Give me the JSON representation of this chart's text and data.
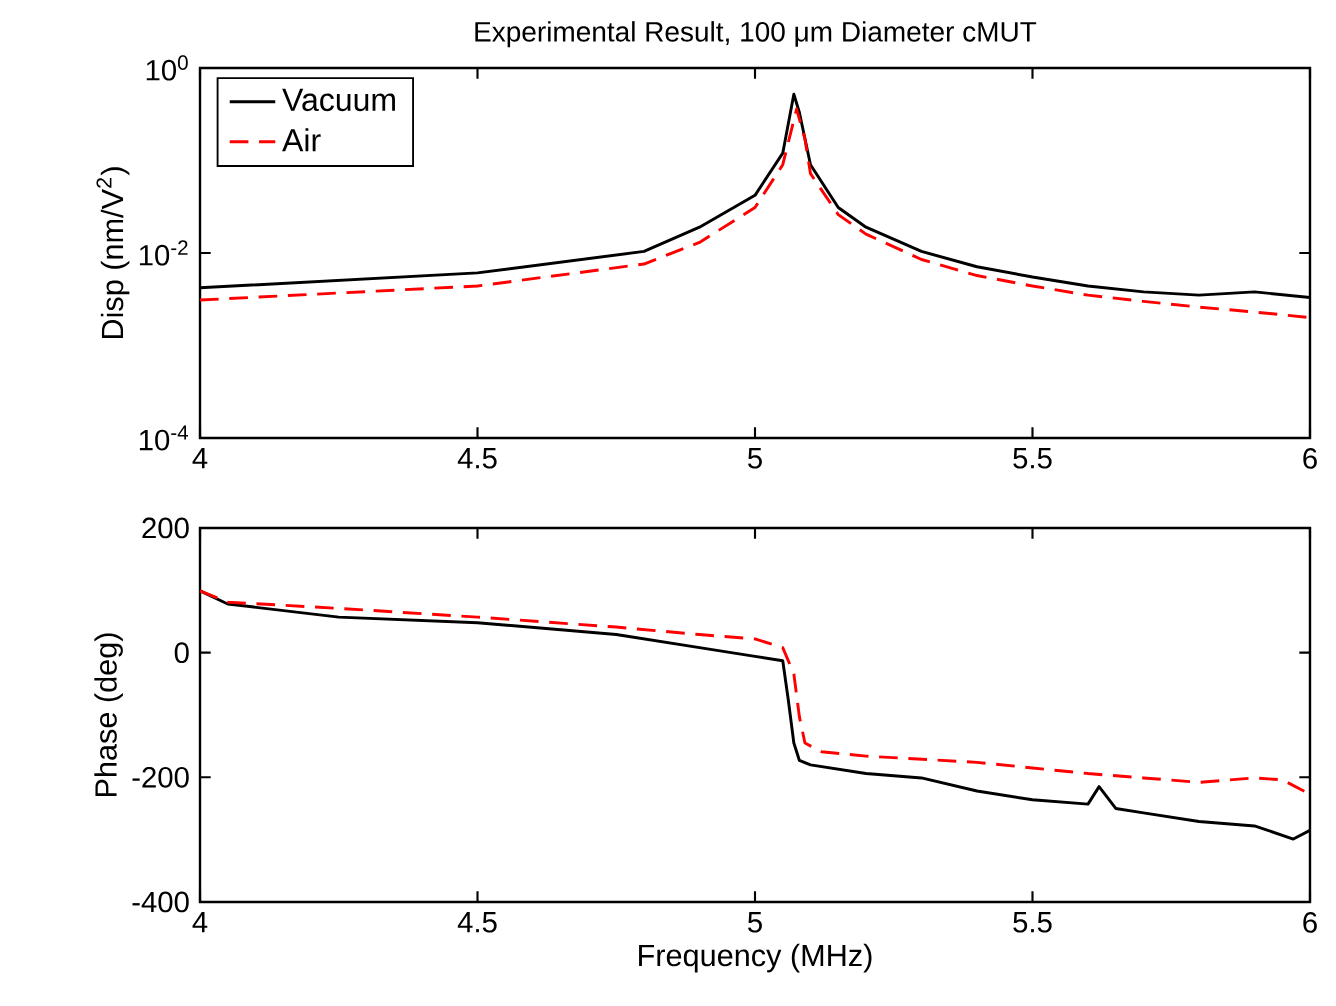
{
  "chart_data": [
    {
      "type": "line",
      "title": "Experimental Result, 100 μm Diameter cMUT",
      "ylabel": "Disp (nm/V$^{2}$)",
      "log": "y",
      "xlim": [
        4,
        6
      ],
      "xticks": [
        4,
        4.5,
        5,
        5.5,
        6
      ],
      "ylim": [
        0.0001,
        1
      ],
      "yticks": [
        {
          "value": 0.0001,
          "label": "10$^{-4}$"
        },
        {
          "value": 0.01,
          "label": "10$^{-2}$"
        },
        {
          "value": 1,
          "label": "10$^{0}$"
        }
      ],
      "legend": "top left",
      "series": [
        {
          "name": "Vacuum",
          "color": "#000000",
          "line_style": "solid",
          "x": [
            4.0,
            4.5,
            4.8,
            4.9,
            5.0,
            5.05,
            5.07,
            5.08,
            5.1,
            5.15,
            5.2,
            5.3,
            5.4,
            5.5,
            5.6,
            5.7,
            5.8,
            5.9,
            6.0
          ],
          "values": [
            0.0042,
            0.0061,
            0.0104,
            0.019,
            0.042,
            0.12,
            0.52,
            0.33,
            0.09,
            0.031,
            0.019,
            0.0104,
            0.0071,
            0.0055,
            0.0044,
            0.0038,
            0.0035,
            0.0038,
            0.0033
          ]
        },
        {
          "name": "Air",
          "color": "#ff0000",
          "line_style": "dashed",
          "x": [
            4.0,
            4.5,
            4.8,
            4.9,
            5.0,
            5.05,
            5.075,
            5.09,
            5.1,
            5.15,
            5.2,
            5.3,
            5.4,
            5.5,
            5.6,
            5.7,
            5.8,
            5.9,
            6.0
          ],
          "values": [
            0.0031,
            0.0044,
            0.0076,
            0.013,
            0.031,
            0.09,
            0.36,
            0.17,
            0.072,
            0.026,
            0.016,
            0.0085,
            0.0057,
            0.0044,
            0.0035,
            0.003,
            0.0026,
            0.0023,
            0.002
          ]
        }
      ]
    },
    {
      "type": "line",
      "xlabel": "Frequency (MHz)",
      "ylabel": "Phase (deg)",
      "xlim": [
        4,
        6
      ],
      "xticks": [
        4,
        4.5,
        5,
        5.5,
        6
      ],
      "ylim": [
        -400,
        200
      ],
      "yticks": [
        -400,
        -200,
        0,
        200
      ],
      "series": [
        {
          "color": "#000000",
          "line_style": "solid",
          "x": [
            4.0,
            4.05,
            4.25,
            4.5,
            4.75,
            4.9,
            5.0,
            5.05,
            5.06,
            5.07,
            5.08,
            5.1,
            5.2,
            5.3,
            5.4,
            5.5,
            5.6,
            5.62,
            5.65,
            5.7,
            5.8,
            5.9,
            5.97,
            6.0
          ],
          "values": [
            99,
            78,
            57,
            48,
            29,
            8,
            -6,
            -13,
            -76,
            -145,
            -173,
            -180,
            -194,
            -201,
            -222,
            -236,
            -243,
            -215,
            -250,
            -257,
            -271,
            -278,
            -299,
            -285
          ]
        },
        {
          "color": "#ff0000",
          "line_style": "dashed",
          "x": [
            4.0,
            4.05,
            4.25,
            4.5,
            4.75,
            4.9,
            5.0,
            5.05,
            5.07,
            5.08,
            5.09,
            5.12,
            5.2,
            5.3,
            5.4,
            5.5,
            5.6,
            5.7,
            5.8,
            5.9,
            5.95,
            6.0
          ],
          "values": [
            99,
            81,
            71,
            57,
            41,
            29,
            22,
            8,
            -34,
            -103,
            -145,
            -159,
            -166,
            -171,
            -176,
            -185,
            -194,
            -201,
            -208,
            -201,
            -204,
            -227
          ]
        }
      ]
    }
  ]
}
